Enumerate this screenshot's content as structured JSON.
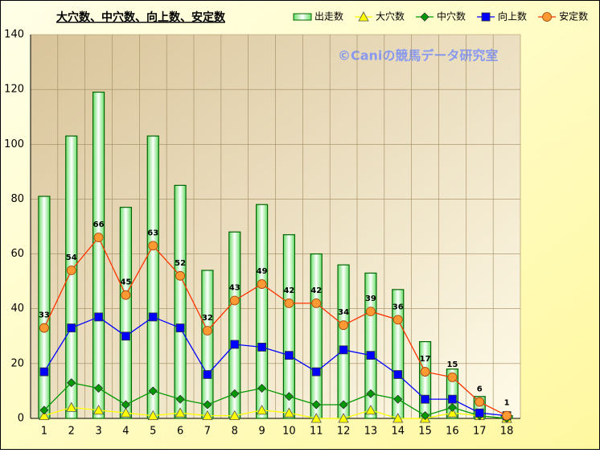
{
  "chart_data": {
    "type": "bar",
    "title": "大穴数、中穴数、向上数、安定数",
    "watermark": "©Caniの競馬データ研究室",
    "categories": [
      "1",
      "2",
      "3",
      "4",
      "5",
      "6",
      "7",
      "8",
      "9",
      "10",
      "11",
      "12",
      "13",
      "14",
      "15",
      "16",
      "17",
      "18"
    ],
    "ylim": [
      0,
      140
    ],
    "yticks": [
      0,
      20,
      40,
      60,
      80,
      100,
      120,
      140
    ],
    "grid": true,
    "series": [
      {
        "name": "出走数",
        "type": "bar",
        "color": "#006600",
        "values": [
          81,
          103,
          119,
          77,
          103,
          85,
          54,
          68,
          78,
          67,
          60,
          56,
          53,
          47,
          28,
          18,
          8,
          1
        ]
      },
      {
        "name": "大穴数",
        "type": "line",
        "marker": "triangle",
        "color": "#ffff00",
        "values": [
          1,
          4,
          3,
          2,
          1,
          2,
          1,
          1,
          3,
          2,
          0,
          0,
          3,
          0,
          0,
          2,
          1,
          0
        ]
      },
      {
        "name": "中穴数",
        "type": "line",
        "marker": "diamond",
        "color": "#009900",
        "values": [
          3,
          13,
          11,
          5,
          10,
          7,
          5,
          9,
          11,
          8,
          5,
          5,
          9,
          7,
          1,
          4,
          1,
          0
        ]
      },
      {
        "name": "向上数",
        "type": "line",
        "marker": "square",
        "color": "#0000ff",
        "values": [
          17,
          33,
          37,
          30,
          37,
          33,
          16,
          27,
          26,
          23,
          17,
          25,
          23,
          16,
          7,
          7,
          2,
          1
        ]
      },
      {
        "name": "安定数",
        "type": "line",
        "marker": "circle",
        "color": "#ff3300",
        "show_labels": true,
        "values": [
          33,
          54,
          66,
          45,
          63,
          52,
          32,
          43,
          49,
          42,
          42,
          34,
          39,
          36,
          17,
          15,
          6,
          1
        ]
      }
    ]
  }
}
